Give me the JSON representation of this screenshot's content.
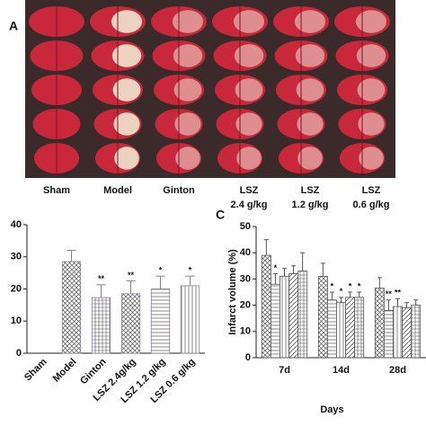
{
  "panel_a": {
    "label": "A",
    "columns": [
      [
        "Sham"
      ],
      [
        "Model"
      ],
      [
        "Ginton"
      ],
      [
        "LSZ",
        "2.4 g/kg"
      ],
      [
        "LSZ",
        "1.2 g/kg"
      ],
      [
        "LSZ",
        "0.6 g/kg"
      ]
    ]
  },
  "chart_data": [
    {
      "type": "bar",
      "categories": [
        "Sham",
        "Model",
        "Ginton",
        "LSZ 2.4g/kg",
        "LSZ 1.2 g/kg",
        "LSZ 0.6 g/kg"
      ],
      "values": [
        0,
        28.5,
        17.3,
        18.5,
        20,
        21
      ],
      "errors": [
        0,
        3.5,
        4,
        4,
        4,
        3
      ],
      "annotations": [
        null,
        null,
        "**",
        "**",
        "*",
        "*"
      ],
      "color": "#8a7f96",
      "ylim": [
        0,
        40
      ],
      "yticks": [
        0,
        10,
        20,
        30,
        40
      ]
    },
    {
      "type": "bar",
      "panel": "C",
      "categories": [
        "7d",
        "14d",
        "28d"
      ],
      "xlabel": "Days",
      "ylabel": "Infarct volume (%)",
      "ylim": [
        0,
        50
      ],
      "yticks": [
        0,
        10,
        20,
        30,
        40,
        50
      ],
      "series": [
        {
          "color": "#555555",
          "values": [
            39,
            31,
            26.5
          ],
          "errors": [
            6,
            5,
            4
          ],
          "annotations": [
            null,
            null,
            null
          ]
        },
        {
          "color": "#555555",
          "values": [
            28,
            22,
            18
          ],
          "errors": [
            4,
            3,
            4
          ],
          "annotations": [
            "*",
            "*",
            "**"
          ]
        },
        {
          "color": "#555555",
          "values": [
            31,
            21,
            19.5
          ],
          "errors": [
            3,
            2,
            3
          ],
          "annotations": [
            null,
            "*",
            "**"
          ]
        },
        {
          "color": "#555555",
          "values": [
            32,
            23,
            19
          ],
          "errors": [
            3,
            2,
            2
          ],
          "annotations": [
            null,
            "*",
            null
          ]
        },
        {
          "color": "#555555",
          "values": [
            33,
            23,
            20
          ],
          "errors": [
            7,
            2,
            2
          ],
          "annotations": [
            null,
            "*",
            null
          ]
        }
      ]
    }
  ]
}
